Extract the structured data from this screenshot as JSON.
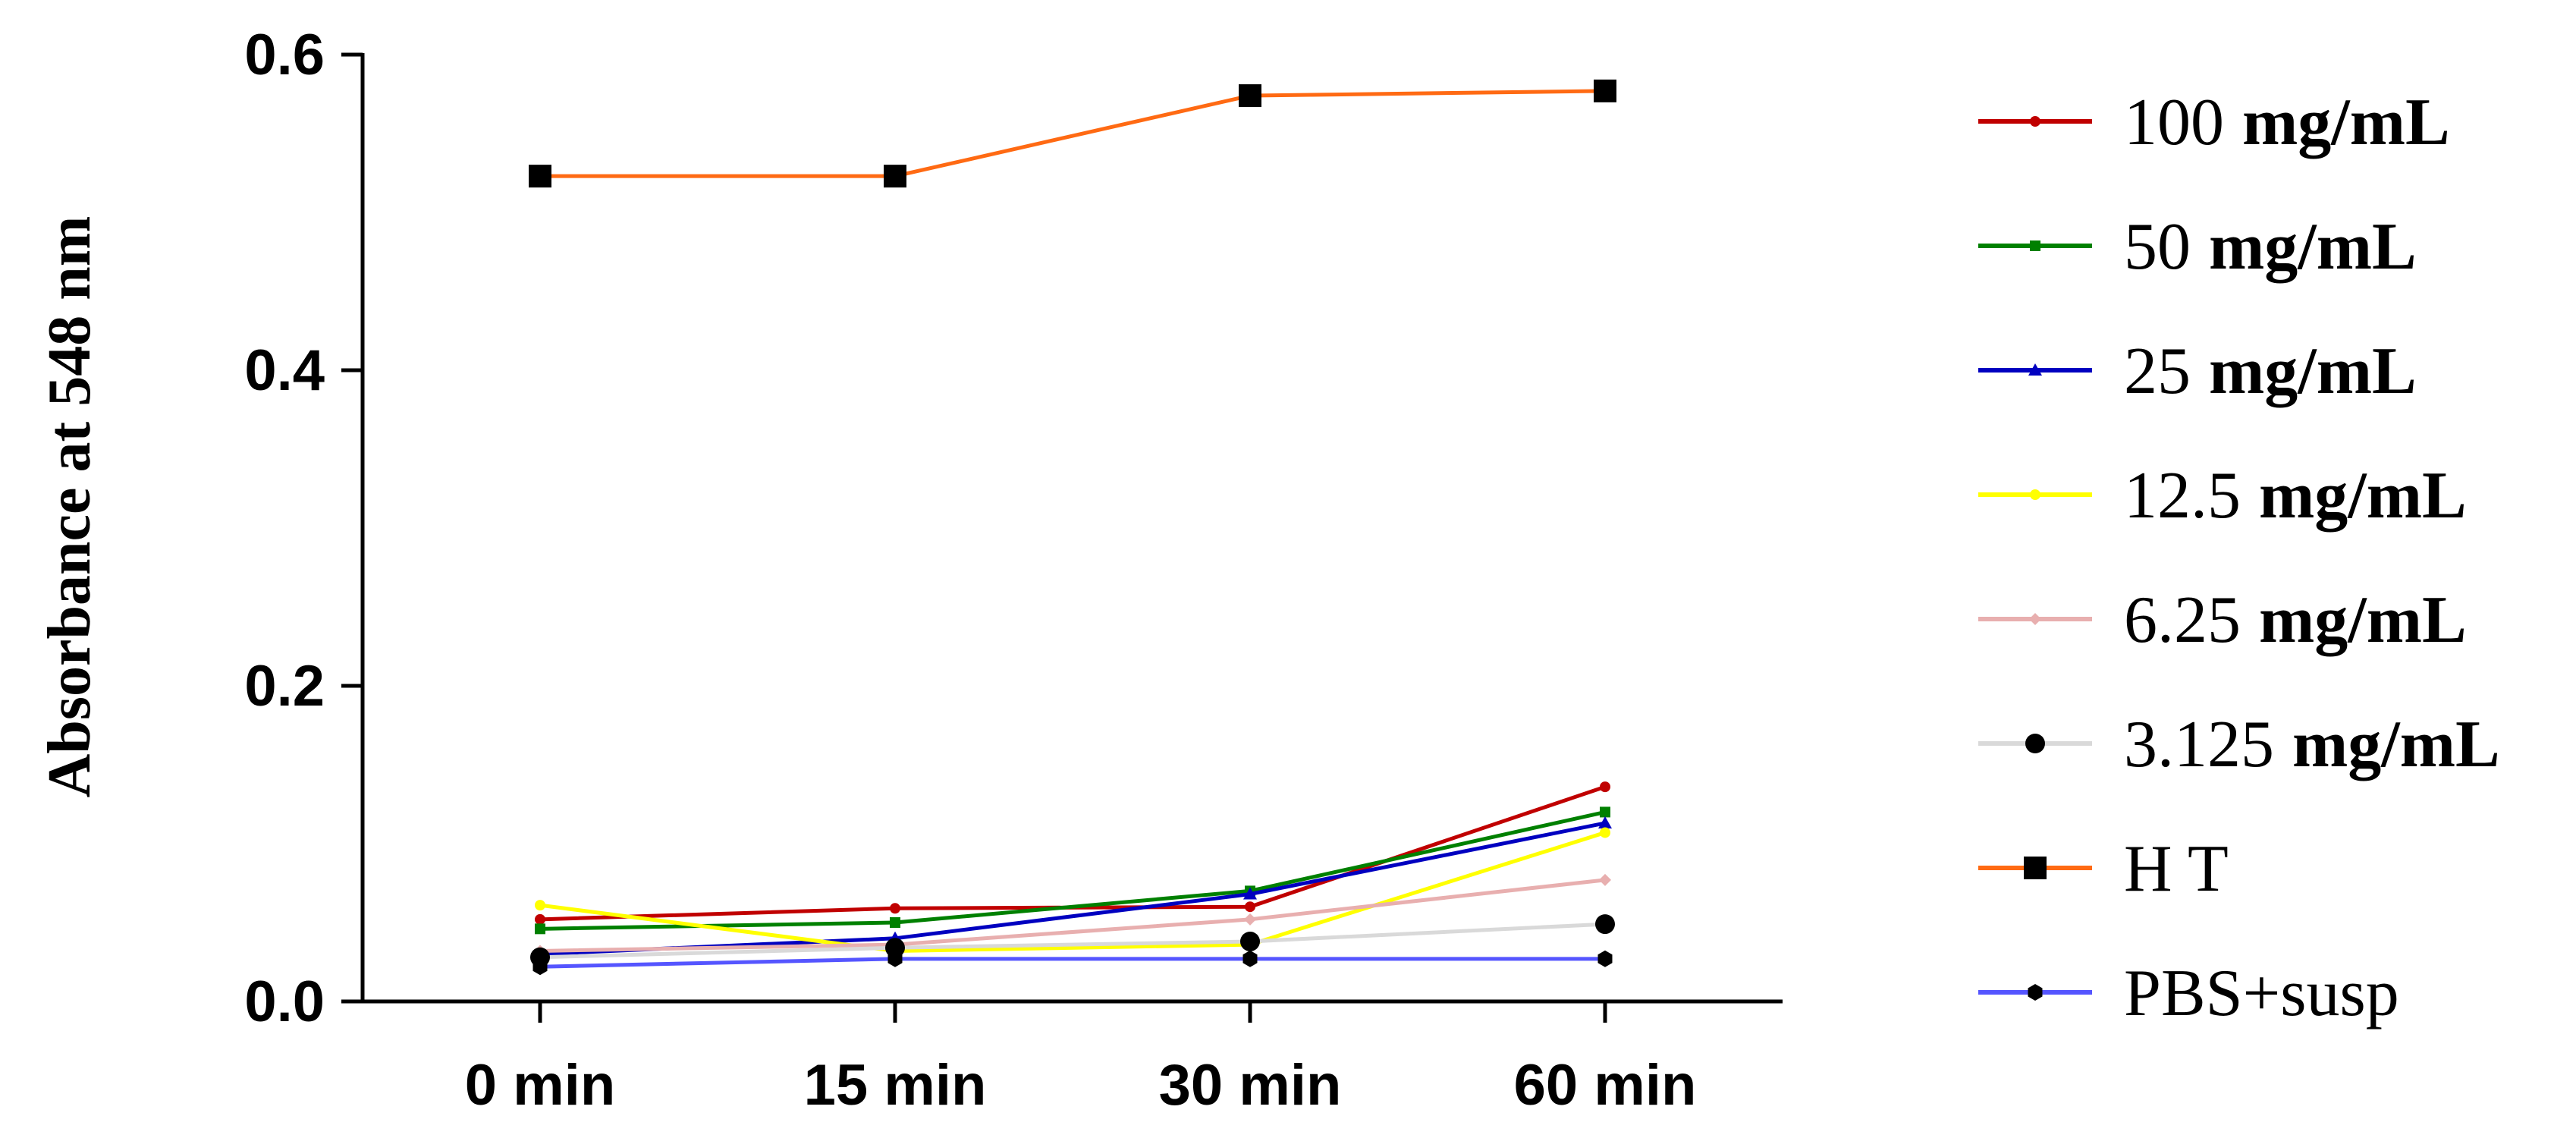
{
  "chart_data": {
    "type": "line",
    "ylabel": "Absorbance at 548 nm",
    "ylim": [
      0.0,
      0.6
    ],
    "yticks": [
      "0.0",
      "0.2",
      "0.4",
      "0.6"
    ],
    "categories": [
      "0 min",
      "15 min",
      "30 min",
      "60 min"
    ],
    "grid": false,
    "legend_position": "right",
    "series": [
      {
        "name": "100",
        "unit": "mg/mL",
        "color": "#C00000",
        "marker": "circle-small",
        "values": [
          0.052,
          0.059,
          0.06,
          0.136
        ]
      },
      {
        "name": "50",
        "unit": "mg/mL",
        "color": "#008000",
        "marker": "square-small",
        "values": [
          0.046,
          0.05,
          0.07,
          0.12
        ]
      },
      {
        "name": "25",
        "unit": "mg/mL",
        "color": "#0000C0",
        "marker": "triangle-small",
        "values": [
          0.03,
          0.04,
          0.068,
          0.113
        ]
      },
      {
        "name": "12.5",
        "unit": "mg/mL",
        "color": "#FFFF00",
        "marker": "circle-small",
        "values": [
          0.061,
          0.032,
          0.036,
          0.107
        ]
      },
      {
        "name": "6.25",
        "unit": "mg/mL",
        "color": "#E8AFAF",
        "marker": "diamond-small",
        "values": [
          0.032,
          0.036,
          0.052,
          0.077
        ]
      },
      {
        "name": "3.125",
        "unit": "mg/mL",
        "color": "#D9D9D9",
        "marker": "circle-large",
        "values": [
          0.028,
          0.034,
          0.038,
          0.049
        ]
      },
      {
        "name": "H T",
        "unit": "",
        "color": "#FF6A13",
        "marker": "square-large",
        "values": [
          0.523,
          0.523,
          0.574,
          0.577
        ]
      },
      {
        "name": "PBS+susp",
        "unit": "",
        "color": "#5555FF",
        "marker": "hexagon",
        "values": [
          0.022,
          0.027,
          0.027,
          0.027
        ]
      }
    ]
  }
}
